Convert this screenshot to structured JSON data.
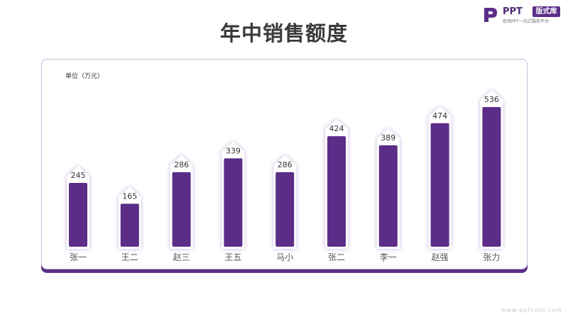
{
  "title": "年中销售额度",
  "logo": {
    "brand": "PPT",
    "badge": "版式库",
    "tagline": "职场PPT一站式服务平台"
  },
  "watermark": "www.pptcool.com",
  "colors": {
    "bar": "#5b2d88",
    "bar_top": "#6a35a0",
    "title": "#3a3a3a",
    "accent": "#5b2d88"
  },
  "chart_data": {
    "type": "bar",
    "unit_label": "单位（万元）",
    "categories": [
      "张一",
      "王二",
      "赵三",
      "王五",
      "马小",
      "张二",
      "李一",
      "赵强",
      "张力"
    ],
    "values": [
      245,
      165,
      286,
      339,
      286,
      424,
      389,
      474,
      536
    ],
    "title": "",
    "xlabel": "",
    "ylabel": "",
    "ylim": [
      0,
      536
    ],
    "grid": false,
    "data_labels": true
  }
}
